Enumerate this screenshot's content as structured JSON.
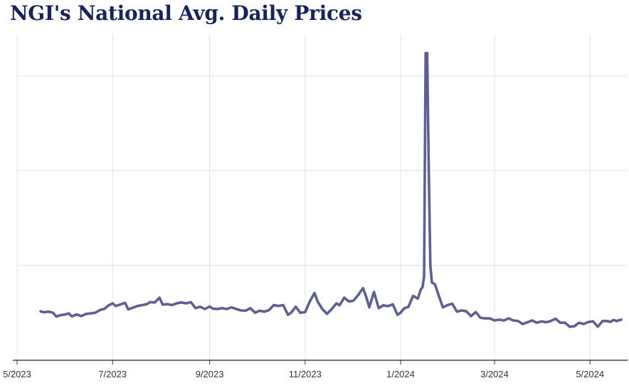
{
  "chart_data": {
    "type": "line",
    "title": "NGI's National Avg. Daily Prices",
    "xlabel": "",
    "ylabel": "",
    "x_tick_labels": [
      "5/2023",
      "7/2023",
      "9/2023",
      "11/2023",
      "1/2024",
      "3/2024",
      "5/2024"
    ],
    "y_tick_labels": [],
    "grid": true,
    "legend": "none",
    "line_color": "#5d6090",
    "x_start": "2023-05-01",
    "x_end": "2024-05-25",
    "series": [
      {
        "values": [
          [
            "2023-05-16",
            2.58
          ],
          [
            "2023-05-18",
            2.53
          ],
          [
            "2023-05-21",
            2.56
          ],
          [
            "2023-05-24",
            2.5
          ],
          [
            "2023-05-26",
            2.31
          ],
          [
            "2023-05-29",
            2.38
          ],
          [
            "2023-06-01",
            2.42
          ],
          [
            "2023-06-03",
            2.47
          ],
          [
            "2023-06-05",
            2.31
          ],
          [
            "2023-06-08",
            2.42
          ],
          [
            "2023-06-11",
            2.33
          ],
          [
            "2023-06-14",
            2.44
          ],
          [
            "2023-06-17",
            2.47
          ],
          [
            "2023-06-20",
            2.51
          ],
          [
            "2023-06-23",
            2.65
          ],
          [
            "2023-06-26",
            2.72
          ],
          [
            "2023-06-28",
            2.87
          ],
          [
            "2023-07-01",
            3.0
          ],
          [
            "2023-07-03",
            2.86
          ],
          [
            "2023-07-06",
            2.94
          ],
          [
            "2023-07-09",
            3.03
          ],
          [
            "2023-07-11",
            2.68
          ],
          [
            "2023-07-14",
            2.77
          ],
          [
            "2023-07-17",
            2.86
          ],
          [
            "2023-07-20",
            2.91
          ],
          [
            "2023-07-23",
            2.96
          ],
          [
            "2023-07-25",
            3.07
          ],
          [
            "2023-07-28",
            3.05
          ],
          [
            "2023-07-31",
            3.3
          ],
          [
            "2023-08-02",
            2.93
          ],
          [
            "2023-08-05",
            2.96
          ],
          [
            "2023-08-08",
            2.91
          ],
          [
            "2023-08-11",
            3.0
          ],
          [
            "2023-08-14",
            3.05
          ],
          [
            "2023-08-17",
            3.0
          ],
          [
            "2023-08-20",
            3.07
          ],
          [
            "2023-08-23",
            2.75
          ],
          [
            "2023-08-26",
            2.82
          ],
          [
            "2023-08-29",
            2.7
          ],
          [
            "2023-09-01",
            2.84
          ],
          [
            "2023-09-03",
            2.72
          ],
          [
            "2023-09-06",
            2.7
          ],
          [
            "2023-09-09",
            2.75
          ],
          [
            "2023-09-12",
            2.7
          ],
          [
            "2023-09-15",
            2.79
          ],
          [
            "2023-09-18",
            2.7
          ],
          [
            "2023-09-21",
            2.63
          ],
          [
            "2023-09-24",
            2.61
          ],
          [
            "2023-09-27",
            2.75
          ],
          [
            "2023-09-30",
            2.51
          ],
          [
            "2023-10-03",
            2.61
          ],
          [
            "2023-10-06",
            2.56
          ],
          [
            "2023-10-09",
            2.65
          ],
          [
            "2023-10-12",
            2.91
          ],
          [
            "2023-10-15",
            2.86
          ],
          [
            "2023-10-18",
            2.91
          ],
          [
            "2023-10-21",
            2.4
          ],
          [
            "2023-10-23",
            2.5
          ],
          [
            "2023-10-26",
            2.82
          ],
          [
            "2023-10-29",
            2.5
          ],
          [
            "2023-11-01",
            2.54
          ],
          [
            "2023-11-04",
            3.1
          ],
          [
            "2023-11-07",
            3.55
          ],
          [
            "2023-11-09",
            3.1
          ],
          [
            "2023-11-12",
            2.7
          ],
          [
            "2023-11-15",
            2.45
          ],
          [
            "2023-11-18",
            2.7
          ],
          [
            "2023-11-21",
            3.0
          ],
          [
            "2023-11-23",
            2.9
          ],
          [
            "2023-11-26",
            3.3
          ],
          [
            "2023-11-29",
            3.1
          ],
          [
            "2023-12-02",
            3.15
          ],
          [
            "2023-12-05",
            3.45
          ],
          [
            "2023-12-08",
            3.8
          ],
          [
            "2023-12-10",
            3.35
          ],
          [
            "2023-12-12",
            2.79
          ],
          [
            "2023-12-15",
            3.6
          ],
          [
            "2023-12-18",
            2.75
          ],
          [
            "2023-12-21",
            2.9
          ],
          [
            "2023-12-24",
            2.85
          ],
          [
            "2023-12-27",
            2.95
          ],
          [
            "2023-12-30",
            2.4
          ],
          [
            "2024-01-01",
            2.5
          ],
          [
            "2024-01-03",
            2.72
          ],
          [
            "2024-01-06",
            2.82
          ],
          [
            "2024-01-09",
            3.4
          ],
          [
            "2024-01-12",
            3.25
          ],
          [
            "2024-01-14",
            3.75
          ],
          [
            "2024-01-15",
            3.85
          ],
          [
            "2024-01-16",
            4.4
          ],
          [
            "2024-01-17",
            16.2
          ],
          [
            "2024-01-18",
            16.2
          ],
          [
            "2024-01-19",
            10.0
          ],
          [
            "2024-01-20",
            5.0
          ],
          [
            "2024-01-21",
            4.1
          ],
          [
            "2024-01-23",
            4.0
          ],
          [
            "2024-01-25",
            3.5
          ],
          [
            "2024-01-28",
            2.79
          ],
          [
            "2024-01-31",
            2.91
          ],
          [
            "2024-02-03",
            2.98
          ],
          [
            "2024-02-06",
            2.56
          ],
          [
            "2024-02-09",
            2.63
          ],
          [
            "2024-02-12",
            2.58
          ],
          [
            "2024-02-15",
            2.33
          ],
          [
            "2024-02-18",
            2.54
          ],
          [
            "2024-02-21",
            2.24
          ],
          [
            "2024-02-24",
            2.21
          ],
          [
            "2024-02-27",
            2.21
          ],
          [
            "2024-03-01",
            2.1
          ],
          [
            "2024-03-04",
            2.14
          ],
          [
            "2024-03-07",
            2.1
          ],
          [
            "2024-03-10",
            2.21
          ],
          [
            "2024-03-13",
            2.1
          ],
          [
            "2024-03-16",
            2.07
          ],
          [
            "2024-03-19",
            1.91
          ],
          [
            "2024-03-22",
            2.0
          ],
          [
            "2024-03-25",
            2.1
          ],
          [
            "2024-03-28",
            1.98
          ],
          [
            "2024-03-31",
            2.05
          ],
          [
            "2024-04-03",
            2.0
          ],
          [
            "2024-04-06",
            2.07
          ],
          [
            "2024-04-09",
            2.19
          ],
          [
            "2024-04-12",
            1.98
          ],
          [
            "2024-04-15",
            1.98
          ],
          [
            "2024-04-18",
            1.77
          ],
          [
            "2024-04-21",
            1.79
          ],
          [
            "2024-04-24",
            1.98
          ],
          [
            "2024-04-27",
            1.91
          ],
          [
            "2024-04-30",
            2.02
          ],
          [
            "2024-05-03",
            2.05
          ],
          [
            "2024-05-06",
            1.77
          ],
          [
            "2024-05-09",
            2.07
          ],
          [
            "2024-05-12",
            2.07
          ],
          [
            "2024-05-14",
            2.02
          ],
          [
            "2024-05-16",
            2.12
          ],
          [
            "2024-05-18",
            2.07
          ],
          [
            "2024-05-21",
            2.14
          ]
        ]
      }
    ]
  }
}
